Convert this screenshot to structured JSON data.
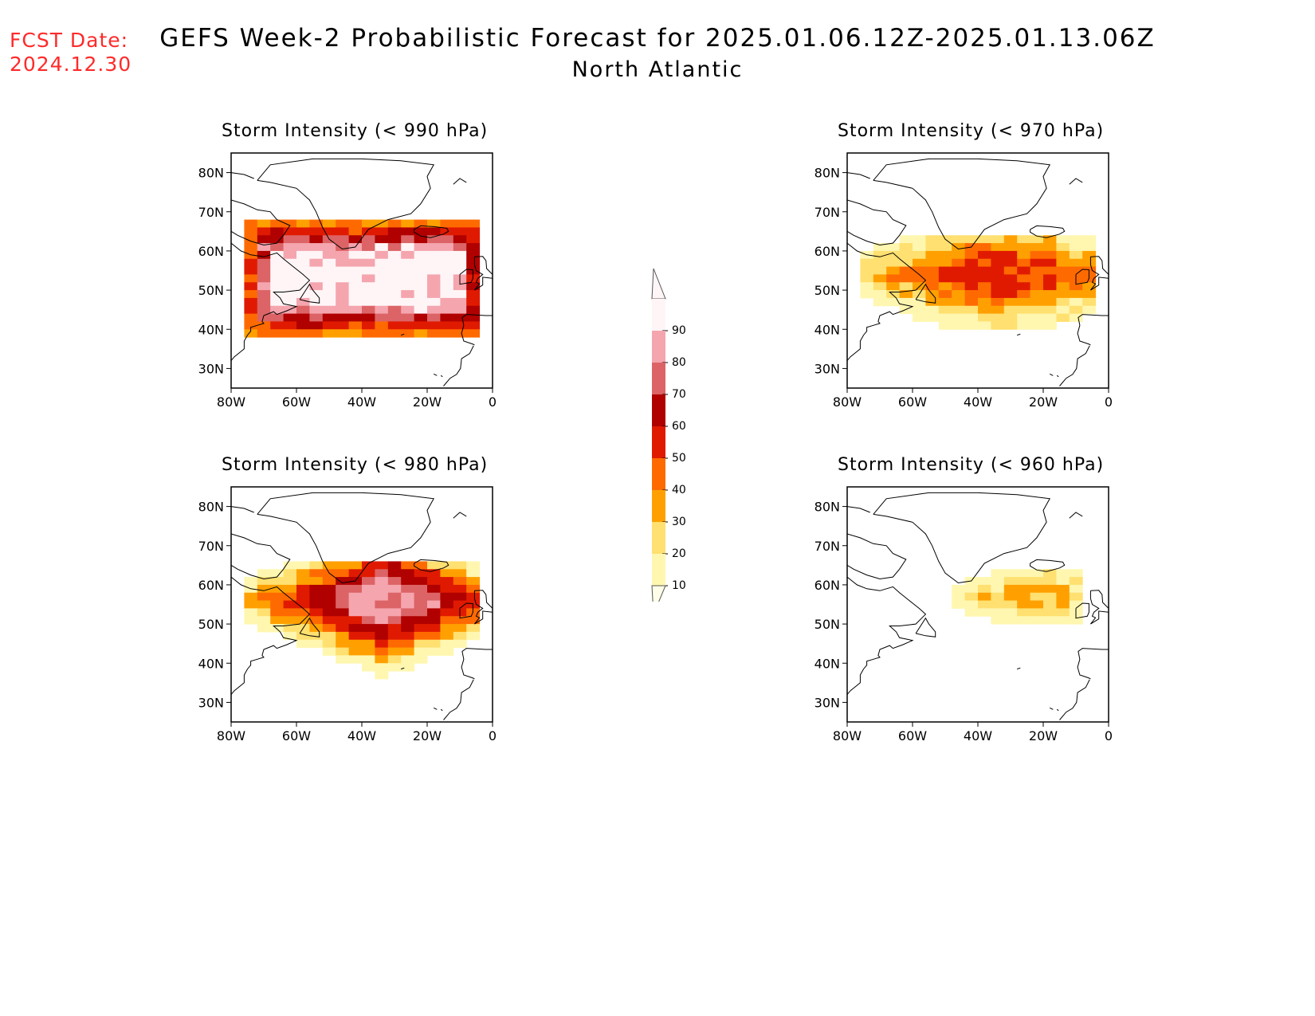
{
  "header": {
    "fcst_label": "FCST Date:",
    "fcst_date": "2024.12.30",
    "title": "GEFS Week-2 Probabilistic Forecast for 2025.01.06.12Z-2025.01.13.06Z",
    "subtitle": "North Atlantic"
  },
  "axes": {
    "lat_labels": [
      "80N",
      "70N",
      "60N",
      "50N",
      "40N",
      "30N"
    ],
    "lon_labels": [
      "80W",
      "60W",
      "40W",
      "20W",
      "0"
    ]
  },
  "panels": [
    {
      "id": "p990",
      "title": "Storm Intensity (< 990 hPa)",
      "max_level": 9
    },
    {
      "id": "p970",
      "title": "Storm Intensity (< 970 hPa)",
      "max_level": 5
    },
    {
      "id": "p980",
      "title": "Storm Intensity (< 980 hPa)",
      "max_level": 8
    },
    {
      "id": "p960",
      "title": "Storm Intensity (< 960 hPa)",
      "max_level": 3
    }
  ],
  "colorbar": {
    "labels": [
      "90",
      "80",
      "70",
      "60",
      "50",
      "40",
      "30",
      "20",
      "10"
    ],
    "colors": [
      "#fff5f7",
      "#f5a5ae",
      "#dc6466",
      "#b00000",
      "#e01a00",
      "#ff6a00",
      "#ffa000",
      "#ffe070",
      "#fff7b0"
    ]
  }
}
